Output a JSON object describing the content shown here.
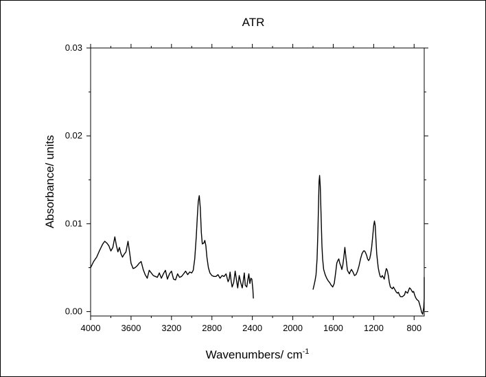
{
  "chart_data": {
    "type": "line",
    "title": "ATR",
    "xlabel": "Wavenumbers/ cm",
    "xlabel_superscript": "-1",
    "ylabel": "Absorbance/ units",
    "xlim": [
      4000,
      700
    ],
    "ylim": [
      -0.0005,
      0.03
    ],
    "x_reversed": true,
    "grid": false,
    "x_ticks": [
      4000,
      3600,
      3200,
      2800,
      2400,
      2000,
      1600,
      1200,
      800
    ],
    "x_tick_labels": [
      "4000",
      "3600",
      "3200",
      "2800",
      "2400",
      "2000",
      "1600",
      "1200",
      "800"
    ],
    "y_ticks": [
      0.0,
      0.01,
      0.02,
      0.03
    ],
    "y_tick_labels": [
      "0.00",
      "0.01",
      "0.02",
      "0.03"
    ],
    "series": [
      {
        "segments": [
          {
            "x": [
              4000,
              3970,
              3940,
              3910,
              3880,
              3860,
              3840,
              3820,
              3800,
              3780,
              3760,
              3745,
              3730,
              3715,
              3700,
              3685,
              3670,
              3650,
              3630,
              3615,
              3600,
              3580,
              3560,
              3540,
              3520,
              3500,
              3480,
              3460,
              3440,
              3420,
              3400,
              3380,
              3360,
              3340,
              3320,
              3300,
              3280,
              3260,
              3240,
              3220,
              3200,
              3180,
              3160,
              3140,
              3120,
              3100,
              3080,
              3060,
              3040,
              3020,
              3000,
              2985,
              2970,
              2955,
              2945,
              2935,
              2925,
              2915,
              2905,
              2895,
              2880,
              2870,
              2860,
              2850,
              2835,
              2820,
              2800,
              2780,
              2760,
              2740,
              2720,
              2700,
              2680,
              2660,
              2640,
              2630,
              2620,
              2610,
              2600,
              2585,
              2570,
              2560,
              2545,
              2530,
              2515,
              2500,
              2490,
              2480,
              2470,
              2455,
              2445,
              2435,
              2425,
              2415,
              2405,
              2395,
              2390
            ],
            "y": [
              0.005,
              0.0057,
              0.0062,
              0.007,
              0.0077,
              0.008,
              0.0078,
              0.0075,
              0.0069,
              0.0073,
              0.0085,
              0.0075,
              0.0068,
              0.0073,
              0.0066,
              0.0062,
              0.0065,
              0.0068,
              0.008,
              0.0068,
              0.0055,
              0.0049,
              0.005,
              0.0052,
              0.0055,
              0.0057,
              0.0048,
              0.0042,
              0.0038,
              0.0047,
              0.0044,
              0.0041,
              0.004,
              0.0039,
              0.0044,
              0.0038,
              0.0043,
              0.0047,
              0.0037,
              0.0043,
              0.0046,
              0.0037,
              0.0036,
              0.0043,
              0.0039,
              0.004,
              0.0043,
              0.0046,
              0.0042,
              0.0045,
              0.0044,
              0.0047,
              0.006,
              0.0085,
              0.0107,
              0.0125,
              0.0132,
              0.0118,
              0.009,
              0.0077,
              0.0078,
              0.0081,
              0.0075,
              0.0062,
              0.005,
              0.0044,
              0.0041,
              0.004,
              0.004,
              0.0042,
              0.0038,
              0.0041,
              0.004,
              0.0043,
              0.0034,
              0.0037,
              0.0045,
              0.0035,
              0.0028,
              0.0033,
              0.0046,
              0.0038,
              0.0027,
              0.0041,
              0.0033,
              0.0027,
              0.0035,
              0.0044,
              0.003,
              0.0028,
              0.0036,
              0.0043,
              0.0032,
              0.0038,
              0.0037,
              0.0025,
              0.0015
            ]
          },
          {
            "x": [
              1800,
              1790,
              1780,
              1770,
              1760,
              1752,
              1745,
              1740,
              1735,
              1728,
              1720,
              1712,
              1705,
              1695,
              1680,
              1665,
              1650,
              1635,
              1620,
              1605,
              1590,
              1575,
              1565,
              1555,
              1545,
              1535,
              1525,
              1515,
              1505,
              1495,
              1485,
              1475,
              1460,
              1450,
              1440,
              1430,
              1420,
              1405,
              1390,
              1375,
              1360,
              1345,
              1330,
              1315,
              1300,
              1290,
              1280,
              1270,
              1260,
              1250,
              1240,
              1230,
              1220,
              1210,
              1200,
              1192,
              1185,
              1178,
              1170,
              1162,
              1155,
              1145,
              1135,
              1125,
              1115,
              1105,
              1095,
              1085,
              1075,
              1065,
              1055,
              1045,
              1035,
              1025,
              1015,
              1005,
              995,
              985,
              975,
              965,
              955,
              945,
              935,
              925,
              915,
              905,
              895,
              885,
              875,
              865,
              855,
              845,
              835,
              825,
              815,
              805,
              795,
              785,
              775,
              765,
              755,
              745,
              735,
              725,
              715,
              705,
              700
            ],
            "y": [
              0.0025,
              0.003,
              0.0035,
              0.0042,
              0.006,
              0.009,
              0.0125,
              0.0148,
              0.0155,
              0.0142,
              0.0108,
              0.0075,
              0.006,
              0.0048,
              0.0042,
              0.0038,
              0.0035,
              0.0033,
              0.003,
              0.0028,
              0.0032,
              0.0045,
              0.0055,
              0.0058,
              0.006,
              0.0055,
              0.0052,
              0.0048,
              0.0053,
              0.0062,
              0.0073,
              0.0062,
              0.0047,
              0.0045,
              0.0043,
              0.0046,
              0.0048,
              0.0045,
              0.0041,
              0.0042,
              0.0046,
              0.0052,
              0.006,
              0.0066,
              0.0069,
              0.0069,
              0.0067,
              0.0064,
              0.006,
              0.0058,
              0.006,
              0.0065,
              0.0073,
              0.0085,
              0.0098,
              0.0103,
              0.0098,
              0.0083,
              0.0066,
              0.0057,
              0.005,
              0.0044,
              0.004,
              0.0039,
              0.0041,
              0.0039,
              0.0037,
              0.0044,
              0.0049,
              0.0047,
              0.0041,
              0.0033,
              0.0028,
              0.0027,
              0.0026,
              0.0028,
              0.0026,
              0.0024,
              0.0022,
              0.0021,
              0.0022,
              0.0019,
              0.0017,
              0.0017,
              0.0017,
              0.0018,
              0.0019,
              0.0023,
              0.0022,
              0.0021,
              0.0024,
              0.0027,
              0.0026,
              0.0024,
              0.0022,
              0.0023,
              0.0019,
              0.0016,
              0.0014,
              0.0013,
              0.0012,
              0.0008,
              0.0004,
              -0.0001,
              -0.0003,
              0.0005,
              0.0015
            ]
          }
        ],
        "x_tail": [
          700,
          695,
          690,
          685,
          680
        ],
        "y_tail": [
          0.0015,
          0.0028,
          0.0039,
          0.0036,
          0.0026
        ]
      }
    ]
  }
}
